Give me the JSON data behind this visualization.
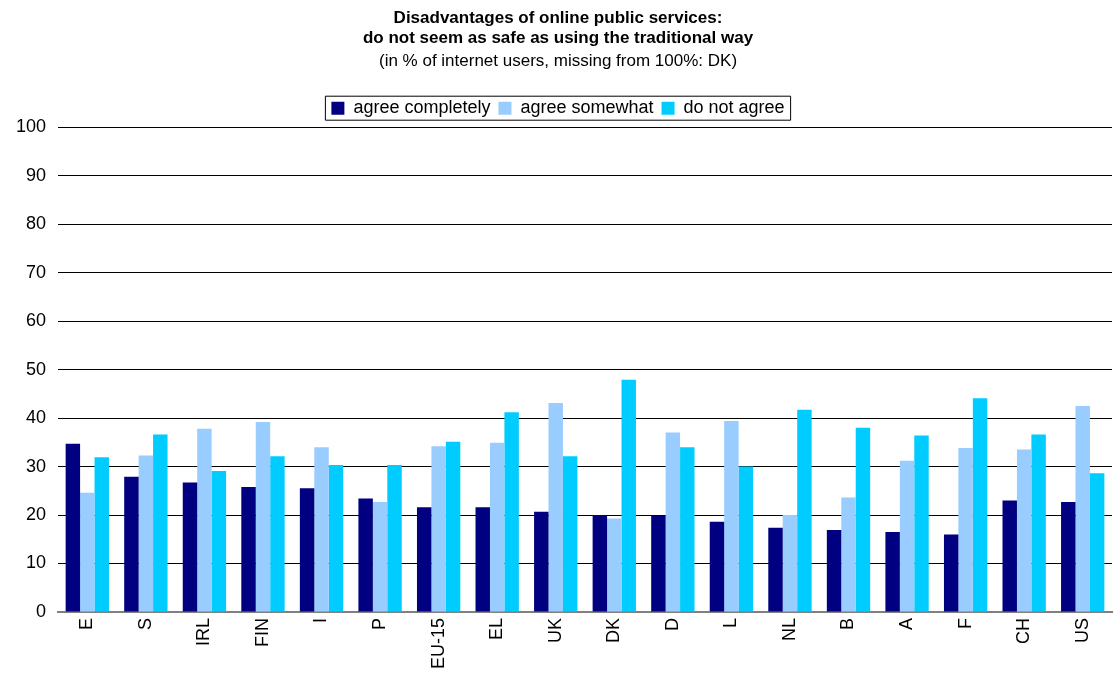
{
  "chart_data": {
    "type": "bar",
    "title": [
      "Disadvantages of online public services:",
      "do not seem as safe as using the traditional way"
    ],
    "subtitle": "(in % of internet users, missing from 100%: DK)",
    "categories": [
      "E",
      "S",
      "IRL",
      "FIN",
      "I",
      "P",
      "EU-15",
      "EL",
      "UK",
      "DK",
      "D",
      "L",
      "NL",
      "B",
      "A",
      "F",
      "CH",
      "US"
    ],
    "series": [
      {
        "name": "agree completely",
        "color": "#000080",
        "values": [
          34.7,
          27.9,
          26.7,
          25.8,
          25.5,
          23.4,
          21.6,
          21.6,
          20.7,
          20.0,
          19.8,
          18.6,
          17.4,
          16.9,
          16.5,
          16.0,
          23.0,
          22.7
        ]
      },
      {
        "name": "agree somewhat",
        "color": "#99ccff",
        "values": [
          24.6,
          32.3,
          37.8,
          39.2,
          34.0,
          22.7,
          34.2,
          34.9,
          43.1,
          19.3,
          37.0,
          39.4,
          20.0,
          23.6,
          31.2,
          33.8,
          33.5,
          42.5
        ]
      },
      {
        "name": "do not agree",
        "color": "#00ccff",
        "values": [
          31.9,
          36.6,
          29.1,
          32.1,
          30.3,
          30.3,
          35.1,
          41.2,
          32.1,
          47.9,
          34.0,
          30.0,
          41.7,
          38.0,
          36.4,
          44.1,
          36.6,
          28.6
        ]
      }
    ],
    "ylim": [
      0,
      100
    ],
    "yticks": [
      0,
      10,
      20,
      30,
      40,
      50,
      60,
      70,
      80,
      90,
      100
    ],
    "grid": "y",
    "legend": "top"
  }
}
